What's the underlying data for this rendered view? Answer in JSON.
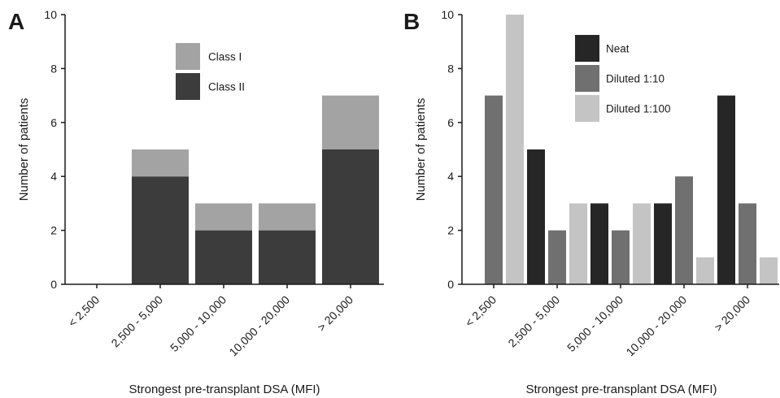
{
  "chart_data": [
    {
      "type": "bar",
      "stacked": true,
      "panel_label": "A",
      "categories": [
        "< 2,500",
        "2,500 - 5,000",
        "5,000 - 10,000",
        "10,000 - 20,000",
        "> 20,000"
      ],
      "series": [
        {
          "name": "Class II",
          "values": [
            0,
            4,
            2,
            2,
            5
          ],
          "color": "#3c3c3c"
        },
        {
          "name": "Class I",
          "values": [
            0,
            1,
            1,
            1,
            2
          ],
          "color": "#a3a3a3"
        }
      ],
      "legend_order": [
        "Class I",
        "Class II"
      ],
      "xlabel": "Strongest pre-transplant DSA (MFI)",
      "ylabel": "Number of patients",
      "ylim": [
        0,
        10
      ],
      "yticks": [
        0,
        2,
        4,
        6,
        8,
        10
      ],
      "grid": false,
      "legend_position": "top-center"
    },
    {
      "type": "bar",
      "stacked": false,
      "panel_label": "B",
      "categories": [
        "< 2,500",
        "2,500 - 5,000",
        "5,000 - 10,000",
        "10,000 - 20,000",
        "> 20,000"
      ],
      "series": [
        {
          "name": "Neat",
          "values": [
            0,
            5,
            3,
            3,
            7
          ],
          "color": "#262626"
        },
        {
          "name": "Diluted 1:10",
          "values": [
            7,
            2,
            2,
            4,
            3
          ],
          "color": "#707070"
        },
        {
          "name": "Diluted 1:100",
          "values": [
            10,
            3,
            3,
            1,
            1
          ],
          "color": "#c4c4c4"
        }
      ],
      "legend_order": [
        "Neat",
        "Diluted 1:10",
        "Diluted 1:100"
      ],
      "xlabel": "Strongest pre-transplant DSA (MFI)",
      "ylabel": "Number of patients",
      "ylim": [
        0,
        10
      ],
      "yticks": [
        0,
        2,
        4,
        6,
        8,
        10
      ],
      "grid": false,
      "legend_position": "top-left"
    }
  ]
}
